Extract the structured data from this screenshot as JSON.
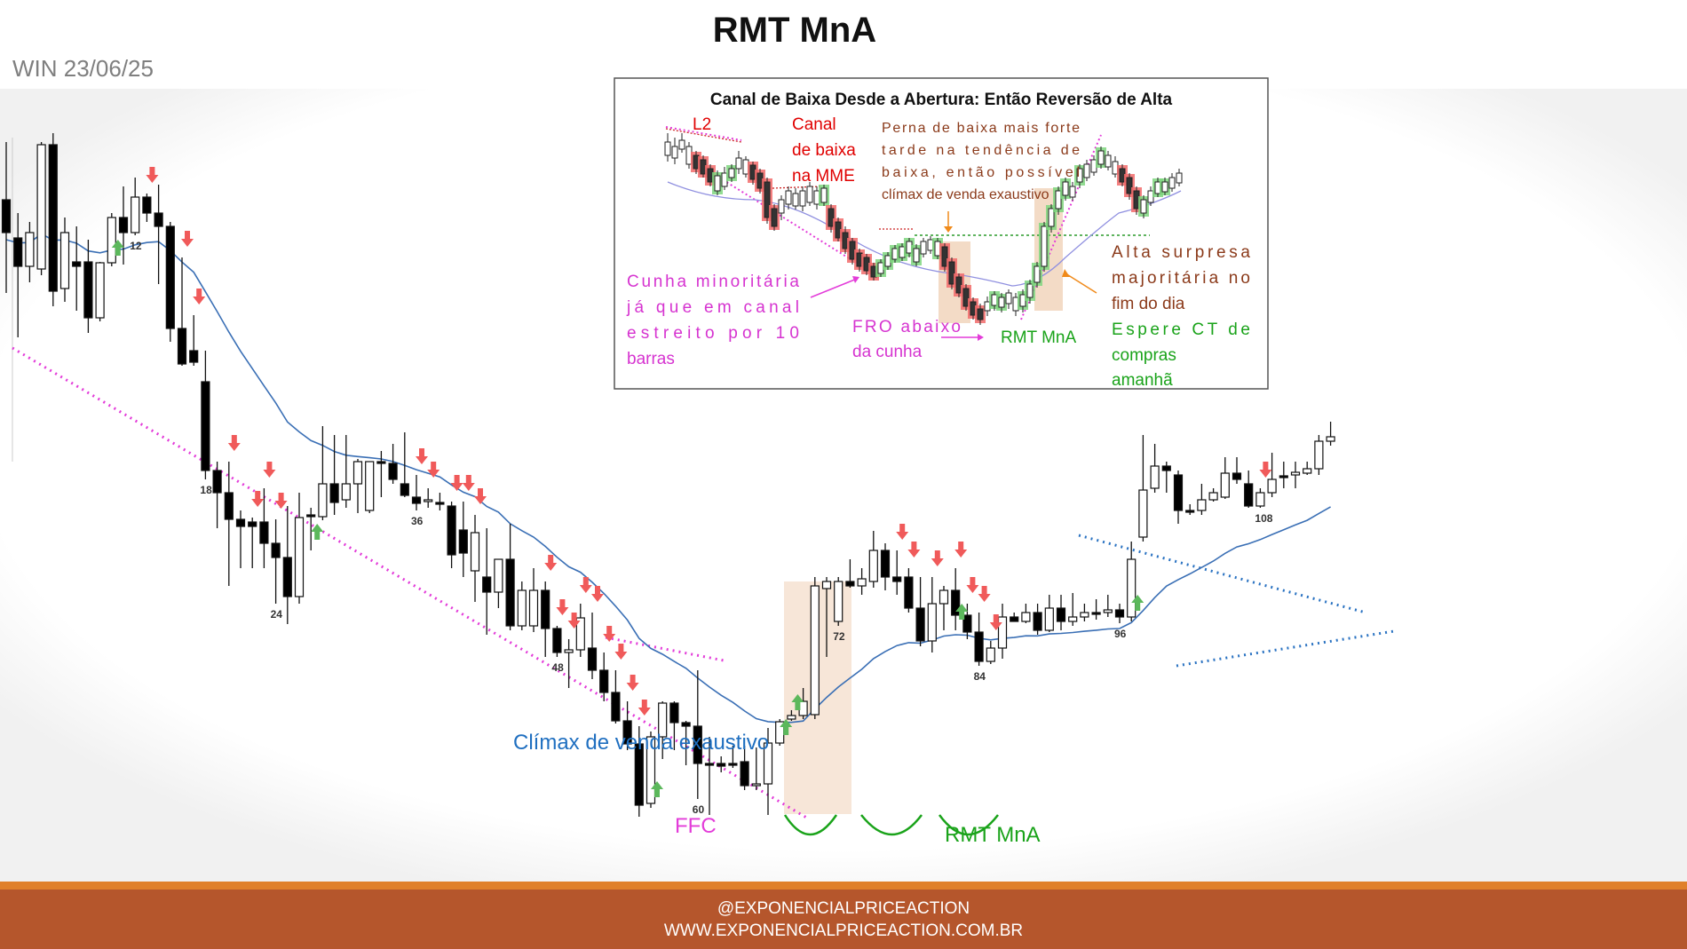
{
  "title": "RMT MnA",
  "subtitle": "WIN 23/06/25",
  "footer": {
    "line1": "@EXPONENCIALPRICEACTION",
    "line2": "WWW.EXPONENCIALPRICEACTION.COM.BR"
  },
  "colors": {
    "bull_body": "#ffffff",
    "bear_body": "#000000",
    "ema": "#3a6fb5",
    "magenta": "#e33cd9",
    "blue_dotted": "#2b73c2",
    "down_arrow": "#f05a5a",
    "up_arrow": "#5cb85c",
    "green_curve": "#1aa31a",
    "highlight": "#f0d2b8",
    "footer": "#b5562c"
  },
  "annotations": {
    "climax": "Clímax de venda exaustivo",
    "ffc": "FFC",
    "rmt": "RMT MnA"
  },
  "inset": {
    "title": "Canal de Baixa Desde a Abertura: Então Reversão de Alta",
    "l2": "L2",
    "canal": [
      "Canal",
      "de baixa",
      "na MME"
    ],
    "perna": [
      "Perna de baixa mais forte",
      "tarde na tendência de",
      "baixa, então possível",
      "clímax de venda exaustivo"
    ],
    "cunha": [
      "Cunha minoritária",
      "já que em canal",
      "estreito por 10",
      "barras"
    ],
    "fro": [
      "FRO abaixo",
      "da cunha"
    ],
    "rmt": "RMT MnA",
    "alta": [
      "Alta surpresa",
      "majoritária no",
      "fim do dia"
    ],
    "espere": [
      "Espere CT de",
      "compras",
      "amanhã"
    ]
  },
  "chart_data": {
    "type": "candlestick",
    "bar_count_labels": [
      "12",
      "18",
      "24",
      "36",
      "48",
      "60",
      "72",
      "84",
      "96",
      "108"
    ],
    "bars": [
      {
        "n": 1,
        "o": 225,
        "h": 160,
        "c": 262,
        "l": 330
      },
      {
        "n": 2,
        "o": 268,
        "h": 240,
        "c": 300,
        "l": 380
      },
      {
        "n": 3,
        "o": 300,
        "h": 250,
        "c": 262,
        "l": 318
      },
      {
        "n": 4,
        "o": 303,
        "h": 160,
        "c": 163,
        "l": 310
      },
      {
        "n": 5,
        "o": 163,
        "h": 150,
        "c": 328,
        "l": 345
      },
      {
        "n": 6,
        "o": 325,
        "h": 245,
        "c": 262,
        "l": 340
      },
      {
        "n": 7,
        "o": 295,
        "h": 255,
        "c": 300,
        "l": 350
      },
      {
        "n": 8,
        "o": 295,
        "h": 270,
        "c": 358,
        "l": 375
      },
      {
        "n": 9,
        "o": 358,
        "h": 295,
        "c": 296,
        "l": 362
      },
      {
        "n": 10,
        "o": 296,
        "h": 240,
        "c": 245,
        "l": 300
      },
      {
        "n": 11,
        "o": 245,
        "h": 210,
        "c": 262,
        "l": 298
      },
      {
        "n": 12,
        "o": 262,
        "h": 200,
        "c": 222,
        "l": 265
      },
      {
        "n": 13,
        "o": 222,
        "h": 218,
        "c": 240,
        "l": 250
      },
      {
        "n": 14,
        "o": 240,
        "h": 208,
        "c": 255,
        "l": 320
      },
      {
        "n": 15,
        "o": 255,
        "h": 250,
        "c": 370,
        "l": 385
      },
      {
        "n": 16,
        "o": 370,
        "h": 290,
        "c": 410,
        "l": 412
      },
      {
        "n": 17,
        "o": 395,
        "h": 355,
        "c": 408,
        "l": 412
      },
      {
        "n": 18,
        "o": 430,
        "h": 395,
        "c": 530,
        "l": 540
      },
      {
        "n": 19,
        "o": 530,
        "h": 520,
        "c": 555,
        "l": 595
      },
      {
        "n": 20,
        "o": 555,
        "h": 520,
        "c": 585,
        "l": 660
      },
      {
        "n": 21,
        "o": 585,
        "h": 575,
        "c": 593,
        "l": 640
      },
      {
        "n": 22,
        "o": 588,
        "h": 583,
        "c": 593,
        "l": 640
      },
      {
        "n": 23,
        "o": 588,
        "h": 550,
        "c": 612,
        "l": 640
      },
      {
        "n": 24,
        "o": 612,
        "h": 585,
        "c": 628,
        "l": 680
      },
      {
        "n": 25,
        "o": 628,
        "h": 570,
        "c": 672,
        "l": 703
      },
      {
        "n": 26,
        "o": 672,
        "h": 555,
        "c": 583,
        "l": 680
      },
      {
        "n": 27,
        "o": 580,
        "h": 572,
        "c": 582,
        "l": 620
      },
      {
        "n": 28,
        "o": 582,
        "h": 480,
        "c": 545,
        "l": 586
      },
      {
        "n": 29,
        "o": 545,
        "h": 490,
        "c": 566,
        "l": 580
      },
      {
        "n": 30,
        "o": 563,
        "h": 490,
        "c": 545,
        "l": 572
      },
      {
        "n": 31,
        "o": 545,
        "h": 517,
        "c": 520,
        "l": 578
      },
      {
        "n": 32,
        "o": 575,
        "h": 520,
        "c": 520,
        "l": 578
      },
      {
        "n": 33,
        "o": 520,
        "h": 508,
        "c": 522,
        "l": 560
      },
      {
        "n": 34,
        "o": 522,
        "h": 500,
        "c": 540,
        "l": 545
      },
      {
        "n": 35,
        "o": 545,
        "h": 487,
        "c": 558,
        "l": 560
      },
      {
        "n": 36,
        "o": 560,
        "h": 535,
        "c": 567,
        "l": 575
      },
      {
        "n": 37,
        "o": 564,
        "h": 550,
        "c": 563,
        "l": 572
      },
      {
        "n": 38,
        "o": 566,
        "h": 555,
        "c": 568,
        "l": 575
      },
      {
        "n": 39,
        "o": 570,
        "h": 565,
        "c": 625,
        "l": 640
      },
      {
        "n": 40,
        "o": 597,
        "h": 565,
        "c": 623,
        "l": 650
      },
      {
        "n": 41,
        "o": 643,
        "h": 580,
        "c": 600,
        "l": 678
      },
      {
        "n": 42,
        "o": 650,
        "h": 595,
        "c": 667,
        "l": 715
      },
      {
        "n": 43,
        "o": 667,
        "h": 645,
        "c": 630,
        "l": 685
      },
      {
        "n": 44,
        "o": 630,
        "h": 590,
        "c": 705,
        "l": 710
      },
      {
        "n": 45,
        "o": 705,
        "h": 655,
        "c": 665,
        "l": 710
      },
      {
        "n": 46,
        "o": 705,
        "h": 640,
        "c": 665,
        "l": 712
      },
      {
        "n": 47,
        "o": 665,
        "h": 655,
        "c": 708,
        "l": 740
      },
      {
        "n": 48,
        "o": 708,
        "h": 705,
        "c": 735,
        "l": 740
      },
      {
        "n": 49,
        "o": 735,
        "h": 720,
        "c": 732,
        "l": 775
      },
      {
        "n": 50,
        "o": 732,
        "h": 680,
        "c": 696,
        "l": 740
      },
      {
        "n": 51,
        "o": 730,
        "h": 690,
        "c": 755,
        "l": 765
      },
      {
        "n": 52,
        "o": 755,
        "h": 735,
        "c": 780,
        "l": 790
      },
      {
        "n": 53,
        "o": 780,
        "h": 755,
        "c": 812,
        "l": 815
      },
      {
        "n": 54,
        "o": 812,
        "h": 790,
        "c": 838,
        "l": 845
      },
      {
        "n": 55,
        "o": 838,
        "h": 818,
        "c": 907,
        "l": 920
      },
      {
        "n": 56,
        "o": 905,
        "h": 824,
        "c": 830,
        "l": 910
      },
      {
        "n": 57,
        "o": 830,
        "h": 790,
        "c": 792,
        "l": 855
      },
      {
        "n": 58,
        "o": 792,
        "h": 790,
        "c": 814,
        "l": 845
      },
      {
        "n": 59,
        "o": 814,
        "h": 812,
        "c": 818,
        "l": 862
      },
      {
        "n": 60,
        "o": 818,
        "h": 755,
        "c": 860,
        "l": 900
      },
      {
        "n": 61,
        "o": 860,
        "h": 830,
        "c": 862,
        "l": 918
      },
      {
        "n": 62,
        "o": 860,
        "h": 852,
        "c": 863,
        "l": 870
      },
      {
        "n": 63,
        "o": 860,
        "h": 840,
        "c": 860,
        "l": 865
      },
      {
        "n": 64,
        "o": 858,
        "h": 840,
        "c": 885,
        "l": 890
      },
      {
        "n": 65,
        "o": 885,
        "h": 842,
        "c": 883,
        "l": 890
      },
      {
        "n": 66,
        "o": 883,
        "h": 820,
        "c": 837,
        "l": 918
      },
      {
        "n": 67,
        "o": 837,
        "h": 810,
        "c": 813,
        "l": 840
      },
      {
        "n": 68,
        "o": 810,
        "h": 800,
        "c": 806,
        "l": 812
      },
      {
        "n": 69,
        "o": 806,
        "h": 775,
        "c": 790,
        "l": 810
      },
      {
        "n": 70,
        "o": 805,
        "h": 650,
        "c": 660,
        "l": 810
      },
      {
        "n": 71,
        "o": 663,
        "h": 650,
        "c": 655,
        "l": 740
      },
      {
        "n": 72,
        "o": 700,
        "h": 650,
        "c": 655,
        "l": 705
      },
      {
        "n": 73,
        "o": 655,
        "h": 630,
        "c": 660,
        "l": 662
      },
      {
        "n": 74,
        "o": 660,
        "h": 640,
        "c": 652,
        "l": 670
      },
      {
        "n": 75,
        "o": 655,
        "h": 598,
        "c": 620,
        "l": 662
      },
      {
        "n": 76,
        "o": 620,
        "h": 612,
        "c": 650,
        "l": 665
      },
      {
        "n": 77,
        "o": 650,
        "h": 620,
        "c": 655,
        "l": 670
      },
      {
        "n": 78,
        "o": 650,
        "h": 640,
        "c": 685,
        "l": 690
      },
      {
        "n": 79,
        "o": 685,
        "h": 650,
        "c": 722,
        "l": 728
      },
      {
        "n": 80,
        "o": 722,
        "h": 650,
        "c": 680,
        "l": 735
      },
      {
        "n": 81,
        "o": 680,
        "h": 660,
        "c": 665,
        "l": 710
      },
      {
        "n": 82,
        "o": 665,
        "h": 640,
        "c": 693,
        "l": 710
      },
      {
        "n": 83,
        "o": 693,
        "h": 680,
        "c": 712,
        "l": 720
      },
      {
        "n": 84,
        "o": 712,
        "h": 690,
        "c": 745,
        "l": 750
      },
      {
        "n": 85,
        "o": 745,
        "h": 722,
        "c": 730,
        "l": 748
      },
      {
        "n": 86,
        "o": 730,
        "h": 680,
        "c": 695,
        "l": 742
      },
      {
        "n": 87,
        "o": 695,
        "h": 690,
        "c": 700,
        "l": 700
      },
      {
        "n": 88,
        "o": 700,
        "h": 680,
        "c": 690,
        "l": 702
      },
      {
        "n": 89,
        "o": 690,
        "h": 680,
        "c": 710,
        "l": 715
      },
      {
        "n": 90,
        "o": 710,
        "h": 670,
        "c": 685,
        "l": 712
      },
      {
        "n": 91,
        "o": 685,
        "h": 670,
        "c": 700,
        "l": 710
      },
      {
        "n": 92,
        "o": 700,
        "h": 668,
        "c": 695,
        "l": 705
      },
      {
        "n": 93,
        "o": 695,
        "h": 680,
        "c": 690,
        "l": 700
      },
      {
        "n": 94,
        "o": 690,
        "h": 675,
        "c": 690,
        "l": 698
      },
      {
        "n": 95,
        "o": 690,
        "h": 670,
        "c": 687,
        "l": 695
      },
      {
        "n": 96,
        "o": 687,
        "h": 680,
        "c": 695,
        "l": 702
      },
      {
        "n": 97,
        "o": 695,
        "h": 610,
        "c": 630,
        "l": 700
      },
      {
        "n": 98,
        "o": 605,
        "h": 490,
        "c": 552,
        "l": 610
      },
      {
        "n": 99,
        "o": 550,
        "h": 500,
        "c": 525,
        "l": 555
      },
      {
        "n": 100,
        "o": 525,
        "h": 520,
        "c": 530,
        "l": 555
      },
      {
        "n": 101,
        "o": 535,
        "h": 530,
        "c": 575,
        "l": 590
      },
      {
        "n": 102,
        "o": 575,
        "h": 568,
        "c": 577,
        "l": 580
      },
      {
        "n": 103,
        "o": 575,
        "h": 545,
        "c": 563,
        "l": 580
      },
      {
        "n": 104,
        "o": 563,
        "h": 550,
        "c": 555,
        "l": 565
      },
      {
        "n": 105,
        "o": 560,
        "h": 515,
        "c": 533,
        "l": 562
      },
      {
        "n": 106,
        "o": 533,
        "h": 515,
        "c": 540,
        "l": 545
      },
      {
        "n": 107,
        "o": 545,
        "h": 530,
        "c": 570,
        "l": 572
      },
      {
        "n": 108,
        "o": 570,
        "h": 550,
        "c": 555,
        "l": 572
      },
      {
        "n": 109,
        "o": 555,
        "h": 510,
        "c": 540,
        "l": 560
      },
      {
        "n": 110,
        "o": 536,
        "h": 520,
        "c": 538,
        "l": 550
      },
      {
        "n": 111,
        "o": 535,
        "h": 520,
        "c": 532,
        "l": 550
      },
      {
        "n": 112,
        "o": 533,
        "h": 520,
        "c": 528,
        "l": 535
      },
      {
        "n": 113,
        "o": 528,
        "h": 490,
        "c": 497,
        "l": 535
      },
      {
        "n": 114,
        "o": 497,
        "h": 475,
        "c": 492,
        "l": 502
      }
    ],
    "down_arrow_bars": [
      13,
      16,
      17,
      20,
      22,
      23,
      24,
      36,
      37,
      39,
      40,
      41,
      47,
      48,
      49,
      50,
      51,
      52,
      53,
      54,
      55,
      77,
      78,
      80,
      82,
      83,
      84,
      85,
      108
    ],
    "up_arrow_bars": [
      10,
      27,
      56,
      67,
      68,
      82,
      97
    ],
    "bar_labels_at": [
      12,
      18,
      24,
      36,
      48,
      60,
      72,
      84,
      96,
      108
    ]
  }
}
